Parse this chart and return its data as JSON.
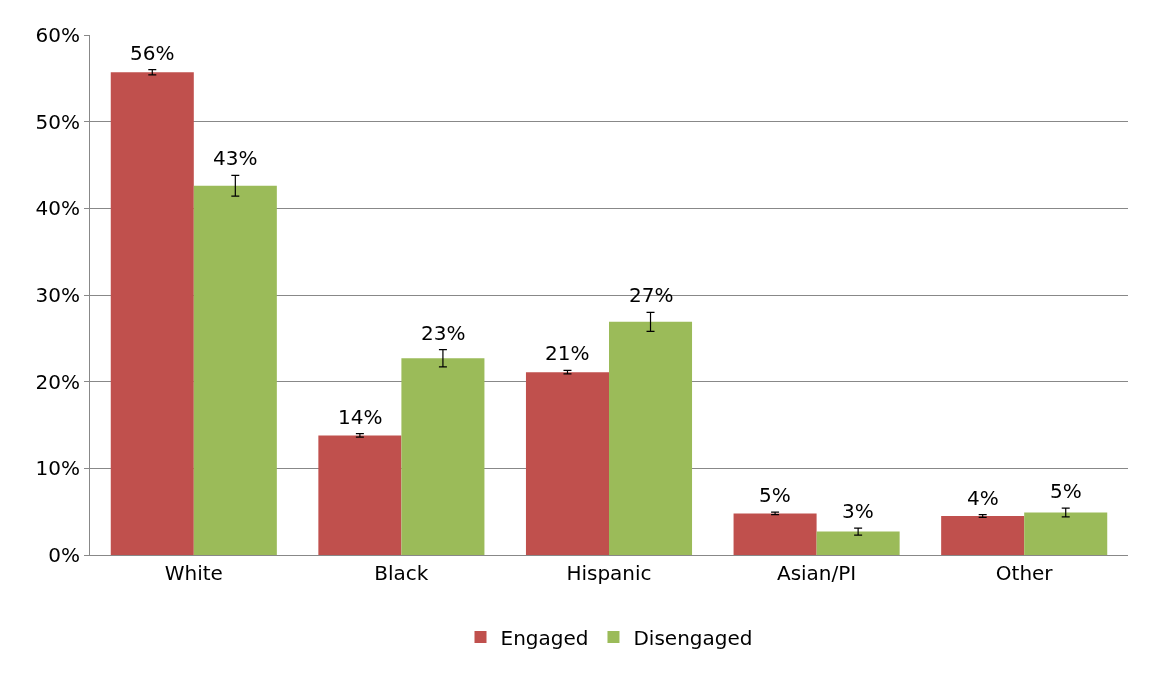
{
  "chart_data": {
    "type": "bar",
    "categories": [
      "White",
      "Black",
      "Hispanic",
      "Asian/PI",
      "Other"
    ],
    "series": [
      {
        "name": "Engaged",
        "color": "#c0504d",
        "values": [
          55.7,
          13.8,
          21.1,
          4.8,
          4.5
        ],
        "errors": [
          0.3,
          0.2,
          0.2,
          0.15,
          0.15
        ],
        "value_labels": [
          "56%",
          "14%",
          "21%",
          "5%",
          "4%"
        ]
      },
      {
        "name": "Disengaged",
        "color": "#9bbb59",
        "values": [
          42.6,
          22.7,
          26.9,
          2.7,
          4.9
        ],
        "errors": [
          1.2,
          1.0,
          1.1,
          0.4,
          0.5
        ],
        "value_labels": [
          "43%",
          "23%",
          "27%",
          "3%",
          "5%"
        ]
      }
    ],
    "ylim": [
      0,
      60
    ],
    "yticks": [
      {
        "value": 0,
        "label": "0%"
      },
      {
        "value": 10,
        "label": "10%"
      },
      {
        "value": 20,
        "label": "20%"
      },
      {
        "value": 30,
        "label": "30%"
      },
      {
        "value": 40,
        "label": "40%"
      },
      {
        "value": 50,
        "label": "50%"
      },
      {
        "value": 60,
        "label": "60%"
      }
    ],
    "grid": "y",
    "legend": "bottom"
  }
}
